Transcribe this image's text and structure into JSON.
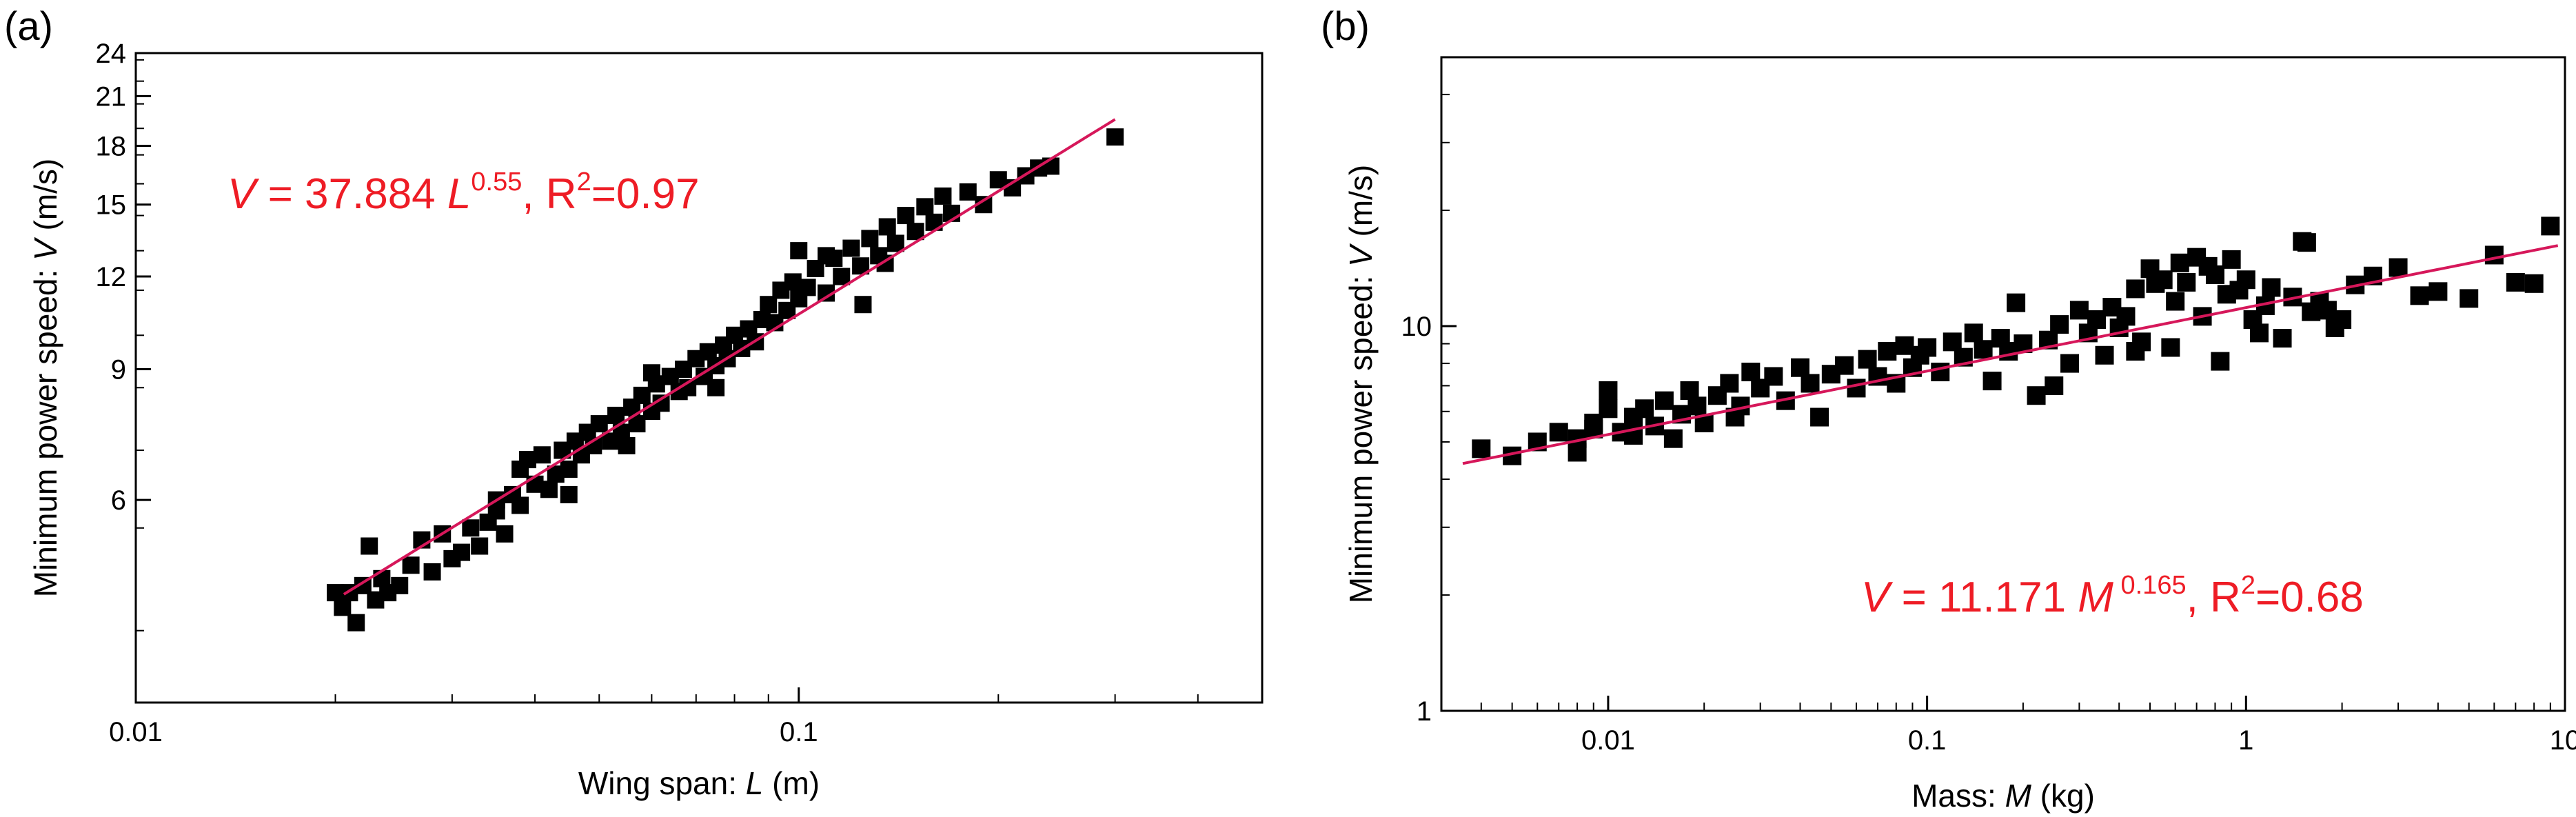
{
  "chart_data": [
    {
      "type": "scatter",
      "panel_label": "(a)",
      "xscale": "log",
      "yscale": "log",
      "xlim": [
        0.01,
        0.5
      ],
      "ylim": [
        3.2,
        24
      ],
      "xticks": [
        0.01,
        0.1
      ],
      "xtick_labels": [
        "0.01",
        "0.1"
      ],
      "yticks": [
        6,
        9,
        12,
        15,
        18,
        21,
        24
      ],
      "ytick_labels": [
        "6",
        "9",
        "12",
        "15",
        "18",
        "21",
        "24"
      ],
      "xlabel": {
        "pre": "Wing span: ",
        "var": "L",
        "post": " (m)"
      },
      "ylabel": {
        "pre": "Minimum power speed: ",
        "var": "V",
        "post": " (m/s)"
      },
      "annotation": {
        "v": "V",
        "coef": " = 37.884 ",
        "var": "L",
        "exp": "0.55",
        "r_pre": ", R",
        "r_exp": "2",
        "r_post": "=0.97"
      },
      "fit": {
        "a": 37.884,
        "b": 0.55,
        "x_range": [
          0.0206,
          0.3
        ],
        "color": "#d6175a"
      },
      "marker_color": "#000000",
      "points": [
        [
          0.02,
          4.5
        ],
        [
          0.0205,
          4.3
        ],
        [
          0.021,
          4.5
        ],
        [
          0.0215,
          4.1
        ],
        [
          0.022,
          4.6
        ],
        [
          0.0225,
          5.2
        ],
        [
          0.023,
          4.4
        ],
        [
          0.0235,
          4.7
        ],
        [
          0.024,
          4.5
        ],
        [
          0.025,
          4.6
        ],
        [
          0.026,
          4.9
        ],
        [
          0.027,
          5.3
        ],
        [
          0.028,
          4.8
        ],
        [
          0.029,
          5.4
        ],
        [
          0.03,
          5.0
        ],
        [
          0.031,
          5.1
        ],
        [
          0.032,
          5.5
        ],
        [
          0.033,
          5.2
        ],
        [
          0.034,
          5.6
        ],
        [
          0.035,
          5.8
        ],
        [
          0.036,
          5.4
        ],
        [
          0.037,
          6.1
        ],
        [
          0.038,
          6.6
        ],
        [
          0.038,
          5.9
        ],
        [
          0.039,
          6.8
        ],
        [
          0.04,
          6.3
        ],
        [
          0.041,
          6.9
        ],
        [
          0.042,
          6.2
        ],
        [
          0.043,
          6.5
        ],
        [
          0.044,
          7.0
        ],
        [
          0.045,
          6.6
        ],
        [
          0.046,
          7.2
        ],
        [
          0.047,
          6.9
        ],
        [
          0.048,
          7.4
        ],
        [
          0.049,
          7.1
        ],
        [
          0.05,
          7.6
        ],
        [
          0.052,
          7.2
        ],
        [
          0.053,
          7.8
        ],
        [
          0.054,
          7.4
        ],
        [
          0.056,
          8.0
        ],
        [
          0.057,
          7.6
        ],
        [
          0.058,
          8.3
        ],
        [
          0.06,
          7.9
        ],
        [
          0.061,
          8.6
        ],
        [
          0.062,
          8.1
        ],
        [
          0.064,
          8.8
        ],
        [
          0.066,
          8.4
        ],
        [
          0.067,
          9.0
        ],
        [
          0.068,
          8.5
        ],
        [
          0.07,
          9.3
        ],
        [
          0.072,
          8.8
        ],
        [
          0.073,
          9.5
        ],
        [
          0.075,
          9.1
        ],
        [
          0.077,
          9.7
        ],
        [
          0.078,
          9.3
        ],
        [
          0.08,
          10.0
        ],
        [
          0.082,
          9.6
        ],
        [
          0.084,
          10.2
        ],
        [
          0.086,
          9.8
        ],
        [
          0.088,
          10.5
        ],
        [
          0.09,
          11.0
        ],
        [
          0.092,
          10.4
        ],
        [
          0.094,
          11.5
        ],
        [
          0.096,
          10.8
        ],
        [
          0.098,
          11.8
        ],
        [
          0.1,
          11.2
        ],
        [
          0.1,
          13.0
        ],
        [
          0.103,
          11.6
        ],
        [
          0.106,
          12.3
        ],
        [
          0.11,
          11.4
        ],
        [
          0.113,
          12.7
        ],
        [
          0.116,
          12.0
        ],
        [
          0.12,
          13.1
        ],
        [
          0.124,
          12.4
        ],
        [
          0.128,
          13.5
        ],
        [
          0.132,
          12.8
        ],
        [
          0.136,
          14.0
        ],
        [
          0.14,
          13.3
        ],
        [
          0.145,
          14.5
        ],
        [
          0.15,
          13.8
        ],
        [
          0.155,
          14.9
        ],
        [
          0.16,
          14.2
        ],
        [
          0.165,
          15.4
        ],
        [
          0.17,
          14.6
        ],
        [
          0.18,
          15.6
        ],
        [
          0.19,
          15.0
        ],
        [
          0.2,
          16.2
        ],
        [
          0.21,
          15.8
        ],
        [
          0.22,
          16.4
        ],
        [
          0.23,
          16.8
        ],
        [
          0.24,
          16.9
        ],
        [
          0.3,
          18.5
        ],
        [
          0.125,
          11.0
        ],
        [
          0.045,
          6.1
        ],
        [
          0.035,
          6.0
        ],
        [
          0.06,
          8.9
        ],
        [
          0.075,
          8.5
        ],
        [
          0.11,
          12.8
        ],
        [
          0.135,
          12.5
        ],
        [
          0.055,
          7.1
        ]
      ]
    },
    {
      "type": "scatter",
      "panel_label": "(b)",
      "xscale": "log",
      "yscale": "log",
      "xlim": [
        0.003,
        10
      ],
      "ylim": [
        1,
        50
      ],
      "xticks": [
        0.01,
        0.1,
        1,
        10
      ],
      "xtick_labels": [
        "0.01",
        "0.1",
        "1",
        "10"
      ],
      "yticks": [
        1,
        10
      ],
      "ytick_labels": [
        "1",
        "10"
      ],
      "xlabel": {
        "pre": "Mass: ",
        "var": "M",
        "post": " (kg)"
      },
      "ylabel": {
        "pre": "Minimum power speed: ",
        "var": "V",
        "post": " (m/s)"
      },
      "annotation": {
        "v": "V",
        "coef": " = 11.171 ",
        "var": "M",
        "exp": " 0.165",
        "r_pre": ", R",
        "r_exp": "2",
        "r_post": "=0.68"
      },
      "fit": {
        "a": 11.171,
        "b": 0.165,
        "x_range": [
          0.0035,
          9.5
        ],
        "color": "#d6175a"
      },
      "marker_color": "#000000",
      "points": [
        [
          0.004,
          4.8
        ],
        [
          0.005,
          4.6
        ],
        [
          0.006,
          5.0
        ],
        [
          0.007,
          5.3
        ],
        [
          0.008,
          5.1
        ],
        [
          0.008,
          4.7
        ],
        [
          0.009,
          5.4
        ],
        [
          0.009,
          5.6
        ],
        [
          0.01,
          6.1
        ],
        [
          0.01,
          6.8
        ],
        [
          0.011,
          5.3
        ],
        [
          0.012,
          5.8
        ],
        [
          0.013,
          6.1
        ],
        [
          0.014,
          5.5
        ],
        [
          0.015,
          6.4
        ],
        [
          0.016,
          5.1
        ],
        [
          0.017,
          5.9
        ],
        [
          0.018,
          6.8
        ],
        [
          0.019,
          6.2
        ],
        [
          0.02,
          5.6
        ],
        [
          0.022,
          6.6
        ],
        [
          0.024,
          7.1
        ],
        [
          0.026,
          6.2
        ],
        [
          0.028,
          7.6
        ],
        [
          0.03,
          6.9
        ],
        [
          0.033,
          7.4
        ],
        [
          0.036,
          6.4
        ],
        [
          0.04,
          7.8
        ],
        [
          0.043,
          7.1
        ],
        [
          0.046,
          5.8
        ],
        [
          0.05,
          7.5
        ],
        [
          0.055,
          7.9
        ],
        [
          0.06,
          6.9
        ],
        [
          0.065,
          8.2
        ],
        [
          0.07,
          7.4
        ],
        [
          0.075,
          8.6
        ],
        [
          0.08,
          7.1
        ],
        [
          0.085,
          8.9
        ],
        [
          0.09,
          7.8
        ],
        [
          0.095,
          8.4
        ],
        [
          0.1,
          8.8
        ],
        [
          0.11,
          7.6
        ],
        [
          0.12,
          9.1
        ],
        [
          0.13,
          8.3
        ],
        [
          0.14,
          9.6
        ],
        [
          0.15,
          8.7
        ],
        [
          0.16,
          7.2
        ],
        [
          0.17,
          9.3
        ],
        [
          0.18,
          8.6
        ],
        [
          0.19,
          11.5
        ],
        [
          0.2,
          9.0
        ],
        [
          0.22,
          6.6
        ],
        [
          0.24,
          9.2
        ],
        [
          0.26,
          10.1
        ],
        [
          0.28,
          8.0
        ],
        [
          0.3,
          11.0
        ],
        [
          0.32,
          9.6
        ],
        [
          0.34,
          10.4
        ],
        [
          0.36,
          8.4
        ],
        [
          0.38,
          11.2
        ],
        [
          0.4,
          9.9
        ],
        [
          0.42,
          10.6
        ],
        [
          0.45,
          12.5
        ],
        [
          0.47,
          9.1
        ],
        [
          0.5,
          14.1
        ],
        [
          0.52,
          12.9
        ],
        [
          0.55,
          13.2
        ],
        [
          0.58,
          8.8
        ],
        [
          0.6,
          11.6
        ],
        [
          0.62,
          14.6
        ],
        [
          0.65,
          13.0
        ],
        [
          0.7,
          15.1
        ],
        [
          0.73,
          10.6
        ],
        [
          0.76,
          14.3
        ],
        [
          0.8,
          13.6
        ],
        [
          0.83,
          8.1
        ],
        [
          0.87,
          12.1
        ],
        [
          0.9,
          14.9
        ],
        [
          0.95,
          12.4
        ],
        [
          1.0,
          13.2
        ],
        [
          1.05,
          10.4
        ],
        [
          1.1,
          9.6
        ],
        [
          1.15,
          11.3
        ],
        [
          1.2,
          12.6
        ],
        [
          1.3,
          9.3
        ],
        [
          1.4,
          11.9
        ],
        [
          1.5,
          16.6
        ],
        [
          1.55,
          16.5
        ],
        [
          1.6,
          10.9
        ],
        [
          1.7,
          11.6
        ],
        [
          1.8,
          11.0
        ],
        [
          1.9,
          9.9
        ],
        [
          2.0,
          10.4
        ],
        [
          2.2,
          12.8
        ],
        [
          2.5,
          13.5
        ],
        [
          3.0,
          14.2
        ],
        [
          3.5,
          12.0
        ],
        [
          4.0,
          12.3
        ],
        [
          5.0,
          11.8
        ],
        [
          6.0,
          15.3
        ],
        [
          7.0,
          13.0
        ],
        [
          8.0,
          12.9
        ],
        [
          9.0,
          18.2
        ],
        [
          0.025,
          5.8
        ],
        [
          0.012,
          5.2
        ],
        [
          0.45,
          8.6
        ],
        [
          0.25,
          7.0
        ]
      ]
    }
  ]
}
